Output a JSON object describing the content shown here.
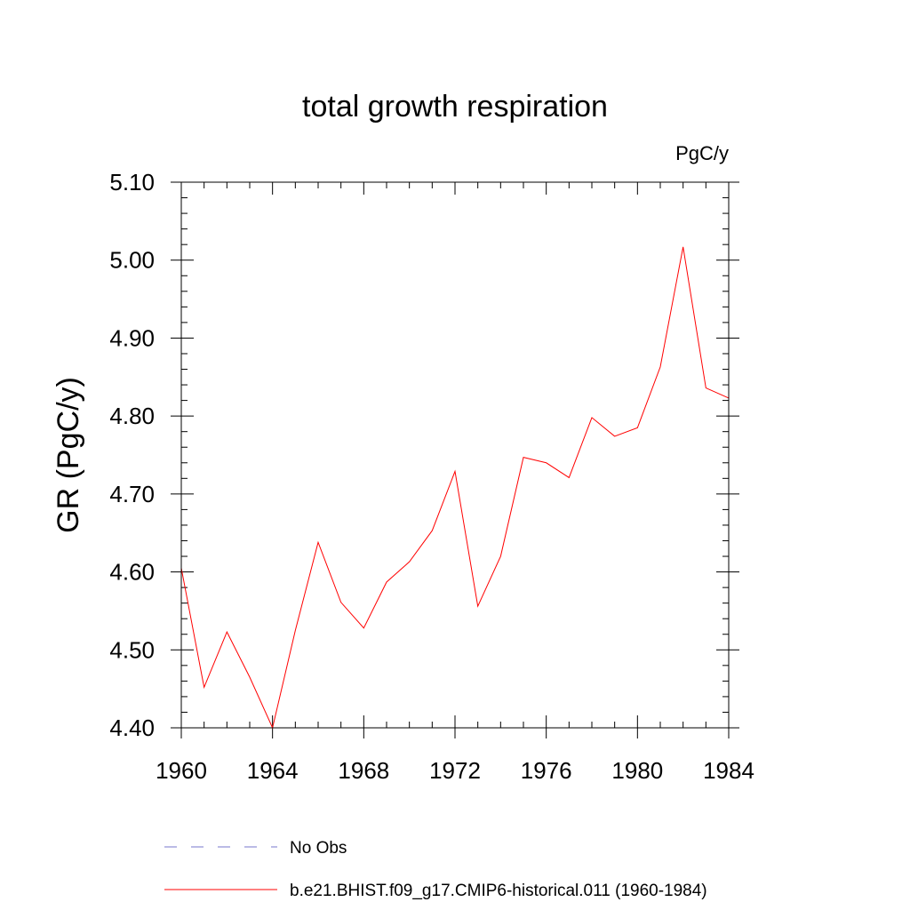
{
  "chart_data": {
    "type": "line",
    "title": "total growth respiration",
    "units": "PgC/y",
    "xlabel": "",
    "ylabel": "GR  (PgC/y)",
    "xlim": [
      1960,
      1984
    ],
    "ylim": [
      4.4,
      5.1
    ],
    "x_ticks": [
      "1960",
      "1964",
      "1968",
      "1972",
      "1976",
      "1980",
      "1984"
    ],
    "y_ticks": [
      "4.40",
      "4.50",
      "4.60",
      "4.70",
      "4.80",
      "4.90",
      "5.00",
      "5.10"
    ],
    "x": [
      1960,
      1961,
      1962,
      1963,
      1964,
      1965,
      1966,
      1967,
      1968,
      1969,
      1970,
      1971,
      1972,
      1973,
      1974,
      1975,
      1976,
      1977,
      1978,
      1979,
      1980,
      1981,
      1982,
      1983,
      1984
    ],
    "series": [
      {
        "name": "b.e21.BHIST.f09_g17.CMIP6-historical.011 (1960-1984)",
        "color": "#ff0000",
        "values": [
          4.605,
          4.452,
          4.523,
          4.465,
          4.4,
          4.525,
          4.638,
          4.561,
          4.528,
          4.587,
          4.613,
          4.653,
          4.729,
          4.556,
          4.62,
          4.747,
          4.74,
          4.721,
          4.798,
          4.774,
          4.785,
          4.863,
          5.017,
          4.836,
          4.823
        ]
      }
    ],
    "legend": [
      {
        "label": "No Obs",
        "color": "#7777cc",
        "style": "dashed"
      },
      {
        "label": "b.e21.BHIST.f09_g17.CMIP6-historical.011 (1960-1984)",
        "color": "#ff0000",
        "style": "solid"
      }
    ],
    "grid": false,
    "legend_position": "bottom"
  }
}
